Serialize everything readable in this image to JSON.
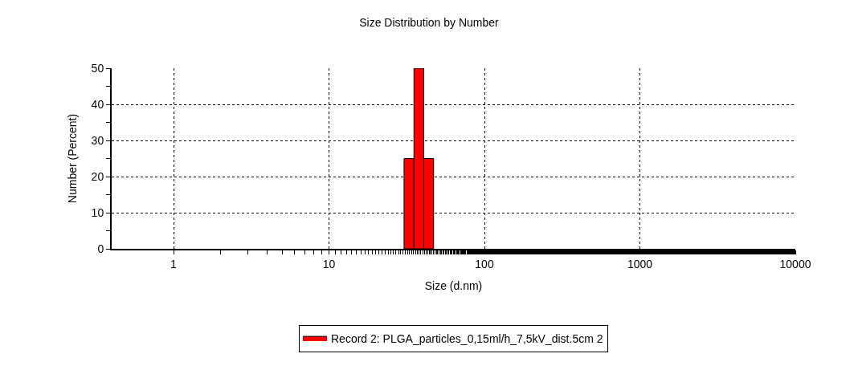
{
  "chart_data": {
    "type": "histogram",
    "title": "Size Distribution by Number",
    "xlabel": "Size (d.nm)",
    "ylabel": "Number (Percent)",
    "bins": [
      30.4,
      35.2,
      40.7,
      47.1
    ],
    "series": [
      {
        "name": "Record 2: PLGA_particles_0,15ml/h_7,5kV_dist.5cm 2",
        "color": "#ff0000",
        "values": [
          25,
          50,
          25
        ]
      }
    ],
    "log": "x",
    "xlim": [
      0.4,
      10000
    ],
    "xticks": [
      1,
      10,
      100,
      1000,
      10000
    ],
    "ylim": [
      0,
      50
    ],
    "yticks": [
      0,
      10,
      20,
      30,
      40,
      50
    ],
    "grid": true,
    "legend": "bottom"
  }
}
